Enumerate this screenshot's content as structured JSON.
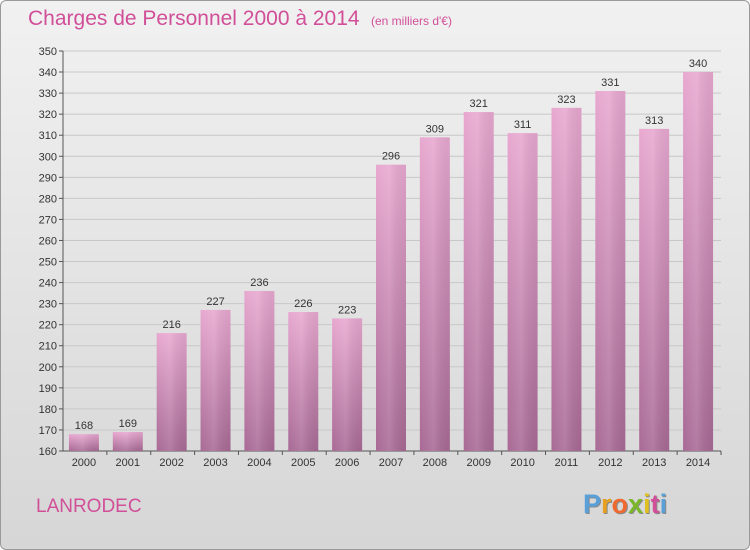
{
  "header": {
    "title": "Charges de Personnel 2000 à 2014",
    "subtitle": "(en milliers d'€)"
  },
  "footer": {
    "commune": "LANRODEC",
    "logo_letters": [
      "P",
      "r",
      "o",
      "x",
      "i",
      "t",
      "i"
    ]
  },
  "colors": {
    "accent": "#d14f98",
    "bar_top": "#e8a8d0",
    "bar_bottom": "#a86a95",
    "grid": "#c8c8c8",
    "logo": [
      "#5aa0d8",
      "#e8a020",
      "#f06a30",
      "#7ab82a",
      "#e0c020",
      "#d14f98",
      "#5aa0d8"
    ]
  },
  "chart_data": {
    "type": "bar",
    "categories": [
      "2000",
      "2001",
      "2002",
      "2003",
      "2004",
      "2005",
      "2006",
      "2007",
      "2008",
      "2009",
      "2010",
      "2011",
      "2012",
      "2013",
      "2014"
    ],
    "values": [
      168,
      169,
      216,
      227,
      236,
      226,
      223,
      296,
      309,
      321,
      311,
      323,
      331,
      313,
      340
    ],
    "title": "Charges de Personnel 2000 à 2014",
    "xlabel": "",
    "ylabel": "",
    "ylim": [
      160,
      350
    ],
    "yticks": [
      160,
      170,
      180,
      190,
      200,
      210,
      220,
      230,
      240,
      250,
      260,
      270,
      280,
      290,
      300,
      310,
      320,
      330,
      340,
      350
    ],
    "grid": true,
    "data_labels": true
  }
}
